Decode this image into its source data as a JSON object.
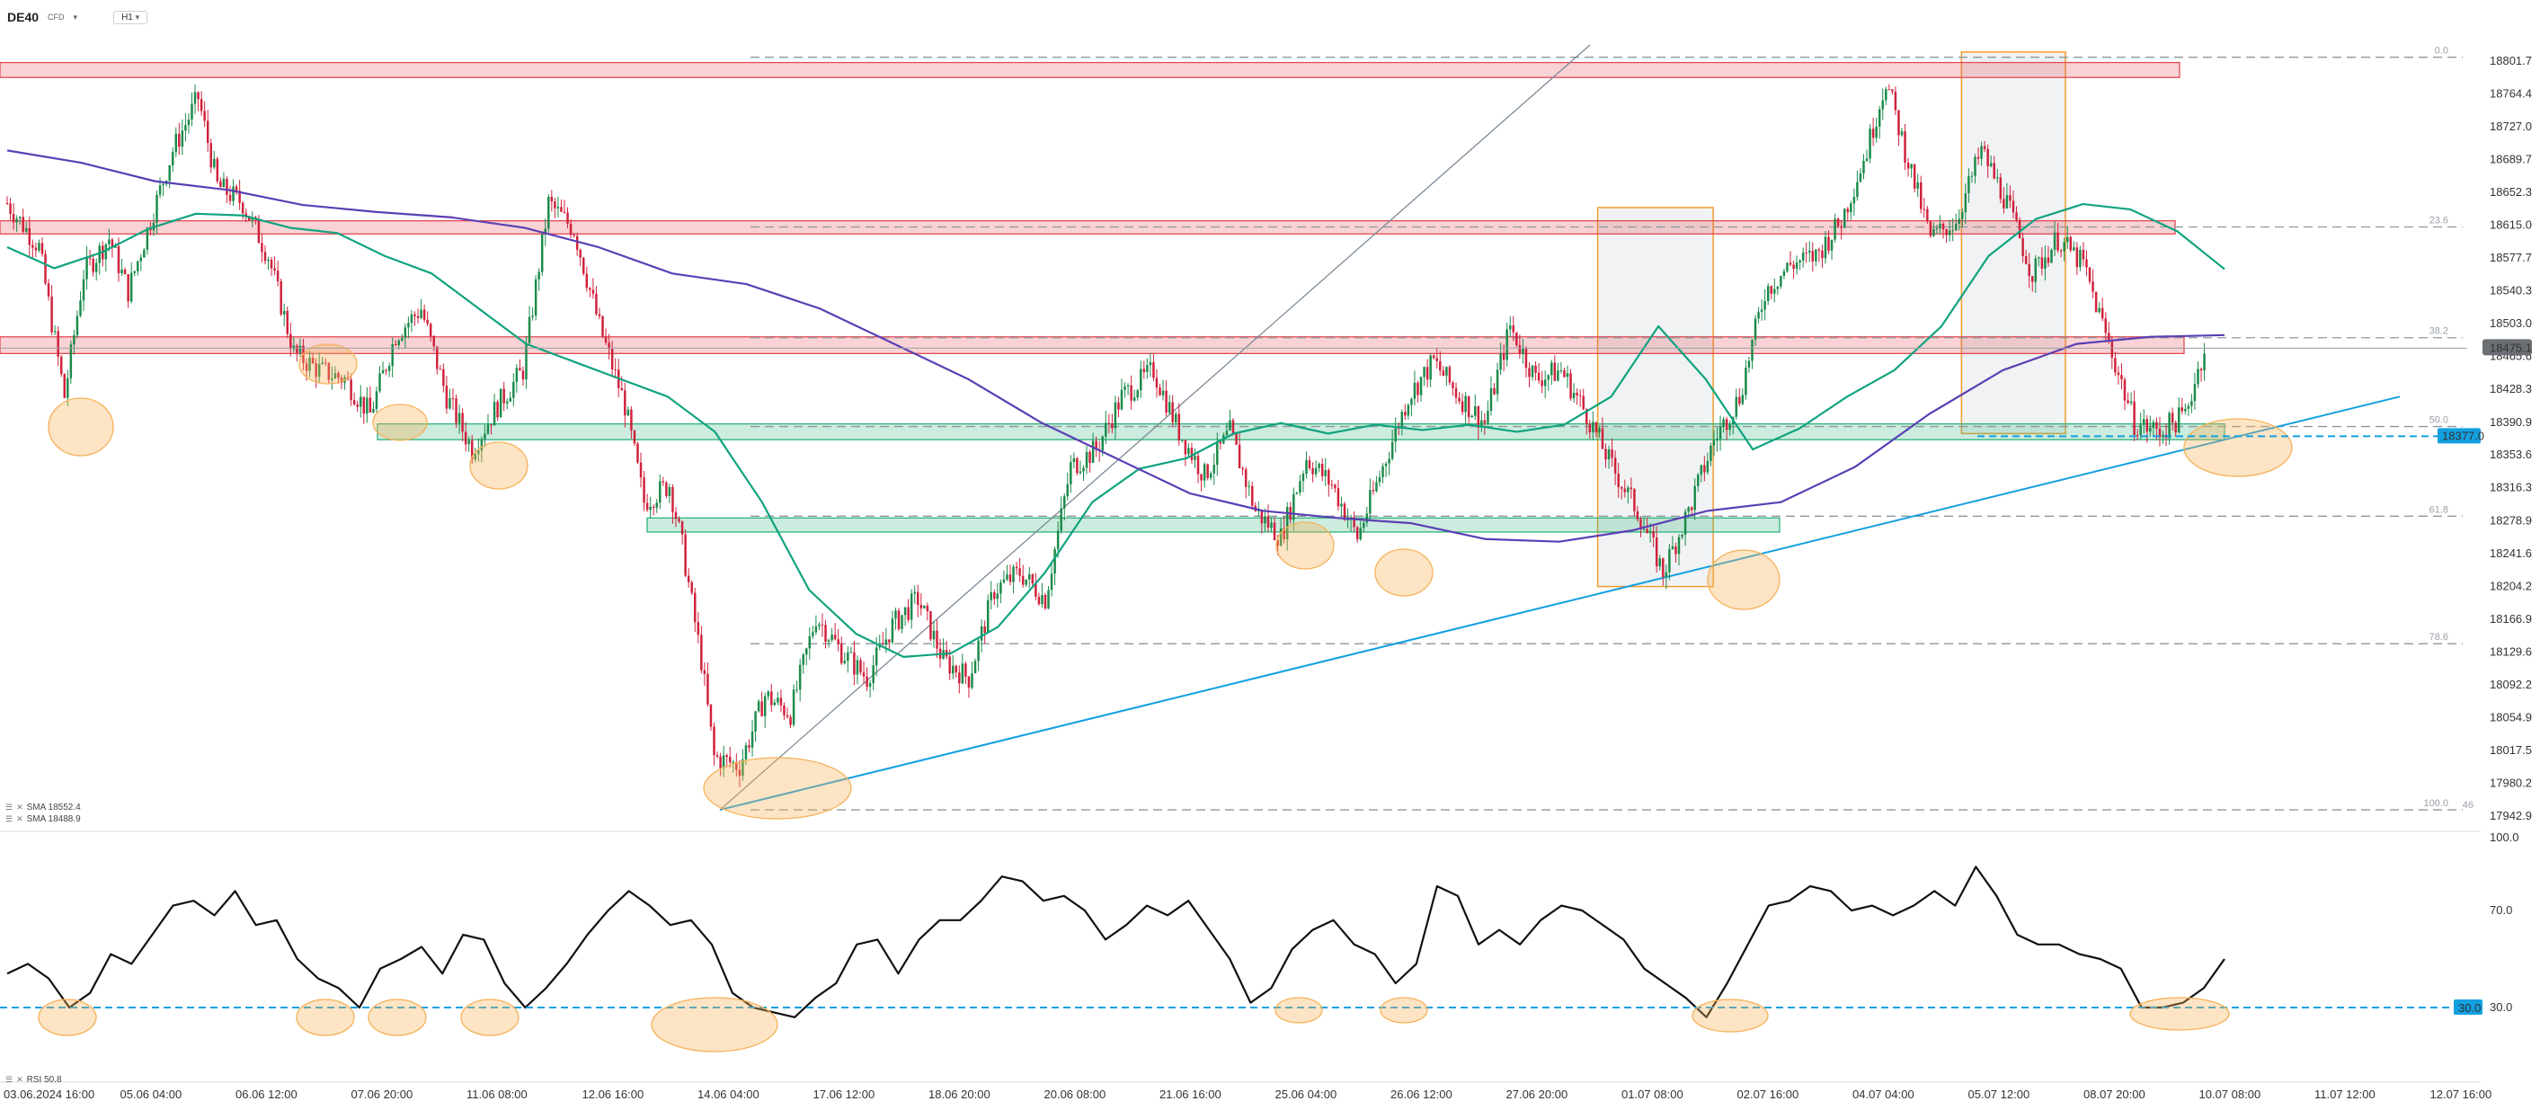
{
  "header": {
    "symbol": "DE40",
    "symbol_sub": "CFD",
    "timeframe": "H1"
  },
  "indicators": [
    {
      "label": "SMA 18552.4",
      "color": "#10a37f"
    },
    {
      "label": "SMA 18488.9",
      "color": "#5b3fb5"
    }
  ],
  "rsi_indicator": {
    "label": "RSI 50.8"
  },
  "colors": {
    "up_candle": "#1b8a4a",
    "down_candle": "#d0213b",
    "resistance": "#e24a55",
    "support": "#2fb37a",
    "trend": "#12a0e0",
    "highlight_circle": "#f5b25a",
    "shade_box": "#e3e8ea",
    "box_border": "#f39b2f",
    "sma_fast": "#10a37f",
    "sma_slow": "#5b3fb5",
    "rsi_line": "#111111"
  },
  "chart_data": [
    {
      "type": "candlestick",
      "title": "DE40 H1",
      "ylim": [
        17942.9,
        18820
      ],
      "y_ticks": [
        "18801.7",
        "18764.4",
        "18727.0",
        "18689.7",
        "18652.3",
        "18615.0",
        "18577.7",
        "18540.3",
        "18503.0",
        "18465.6",
        "18428.3",
        "18390.9",
        "18353.6",
        "18316.3",
        "18278.9",
        "18241.6",
        "18204.2",
        "18166.9",
        "18129.6",
        "18092.2",
        "18054.9",
        "18017.5",
        "17980.2",
        "17942.9"
      ],
      "y_tick_values": [
        18801.7,
        18764.4,
        18727.0,
        18689.7,
        18652.3,
        18615.0,
        18577.7,
        18540.3,
        18503.0,
        18465.6,
        18428.3,
        18390.9,
        18353.6,
        18316.3,
        18278.9,
        18241.6,
        18204.2,
        18166.9,
        18129.6,
        18092.2,
        18054.9,
        18017.5,
        17980.2,
        17942.9
      ],
      "x_ticks": [
        "03.06.2024 16:00",
        "05.06 04:00",
        "06.06 12:00",
        "07.06 20:00",
        "11.06 08:00",
        "12.06 16:00",
        "14.06 04:00",
        "17.06 12:00",
        "18.06 20:00",
        "20.06 08:00",
        "21.06 16:00",
        "25.06 04:00",
        "26.06 12:00",
        "27.06 20:00",
        "01.07 08:00",
        "02.07 16:00",
        "04.07 04:00",
        "05.07 12:00",
        "08.07 20:00",
        "10.07 08:00",
        "11.07 12:00",
        "12.07 16:00"
      ],
      "current_price": "18475.1",
      "marked_price": "18377.0",
      "fib_levels": [
        {
          "label": "0.0",
          "value": 18806
        },
        {
          "label": "23.6",
          "value": 18613
        },
        {
          "label": "38.2",
          "value": 18487
        },
        {
          "label": "50.0",
          "value": 18386
        },
        {
          "label": "61.8",
          "value": 18284
        },
        {
          "label": "78.6",
          "value": 18139
        },
        {
          "label": "100.0",
          "value": 17950
        }
      ],
      "fib_bottom_note": "46",
      "resistance_zones": [
        {
          "y_from": 18783,
          "y_to": 18800
        },
        {
          "y_from": 18605,
          "y_to": 18620
        },
        {
          "y_from": 18469,
          "y_to": 18488
        }
      ],
      "support_zones": [
        {
          "y_from": 18371,
          "y_to": 18389
        },
        {
          "y_from": 18266,
          "y_to": 18282
        }
      ],
      "trend_line": {
        "from": [
          "14.06 04:00",
          17950
        ],
        "to": [
          "11.07 12:00",
          18420
        ]
      },
      "fan_line": {
        "from": [
          "14.06 04:00",
          17950
        ],
        "to": [
          "01.07 08:00",
          18820
        ]
      },
      "series": [
        {
          "name": "SMA 18552.4",
          "values": [
            18590,
            18566,
            18584,
            18611,
            18628,
            18626,
            18612,
            18606,
            18580,
            18560,
            18520,
            18480,
            18460,
            18440,
            18420,
            18380,
            18300,
            18200,
            18150,
            18124,
            18128,
            18158,
            18220,
            18300,
            18338,
            18350,
            18378,
            18390,
            18378,
            18388,
            18382,
            18388,
            18380,
            18388,
            18420,
            18500,
            18440,
            18360,
            18384,
            18420,
            18450,
            18500,
            18580,
            18622,
            18639,
            18633,
            18608,
            18565
          ]
        },
        {
          "name": "SMA 18488.9",
          "values": [
            18700,
            18686,
            18665,
            18655,
            18638,
            18630,
            18624,
            18612,
            18590,
            18560,
            18548,
            18520,
            18480,
            18440,
            18390,
            18350,
            18310,
            18290,
            18282,
            18276,
            18258,
            18255,
            18268,
            18290,
            18300,
            18340,
            18400,
            18450,
            18480,
            18488,
            18490
          ]
        }
      ]
    },
    {
      "type": "line",
      "title": "RSI",
      "ylim": [
        0,
        100
      ],
      "y_ticks": [
        "100.0",
        "70.0",
        "30.0"
      ],
      "y_tick_values": [
        100,
        70,
        30
      ],
      "level": "30.0",
      "series": [
        {
          "name": "RSI 50.8",
          "values": [
            44,
            48,
            42,
            30,
            36,
            52,
            48,
            60,
            72,
            74,
            68,
            78,
            64,
            66,
            50,
            42,
            38,
            30,
            46,
            50,
            55,
            44,
            60,
            58,
            40,
            30,
            38,
            48,
            60,
            70,
            78,
            72,
            64,
            66,
            56,
            36,
            30,
            28,
            26,
            34,
            40,
            56,
            58,
            44,
            58,
            66,
            66,
            74,
            84,
            82,
            74,
            76,
            70,
            58,
            64,
            72,
            68,
            74,
            62,
            50,
            32,
            38,
            54,
            62,
            66,
            56,
            52,
            40,
            48,
            80,
            76,
            56,
            62,
            56,
            66,
            72,
            70,
            64,
            58,
            46,
            40,
            34,
            26,
            40,
            56,
            72,
            74,
            80,
            78,
            70,
            72,
            68,
            72,
            78,
            72,
            88,
            76,
            60,
            56,
            56,
            52,
            50,
            46,
            30,
            30,
            32,
            38,
            50
          ]
        }
      ]
    }
  ]
}
